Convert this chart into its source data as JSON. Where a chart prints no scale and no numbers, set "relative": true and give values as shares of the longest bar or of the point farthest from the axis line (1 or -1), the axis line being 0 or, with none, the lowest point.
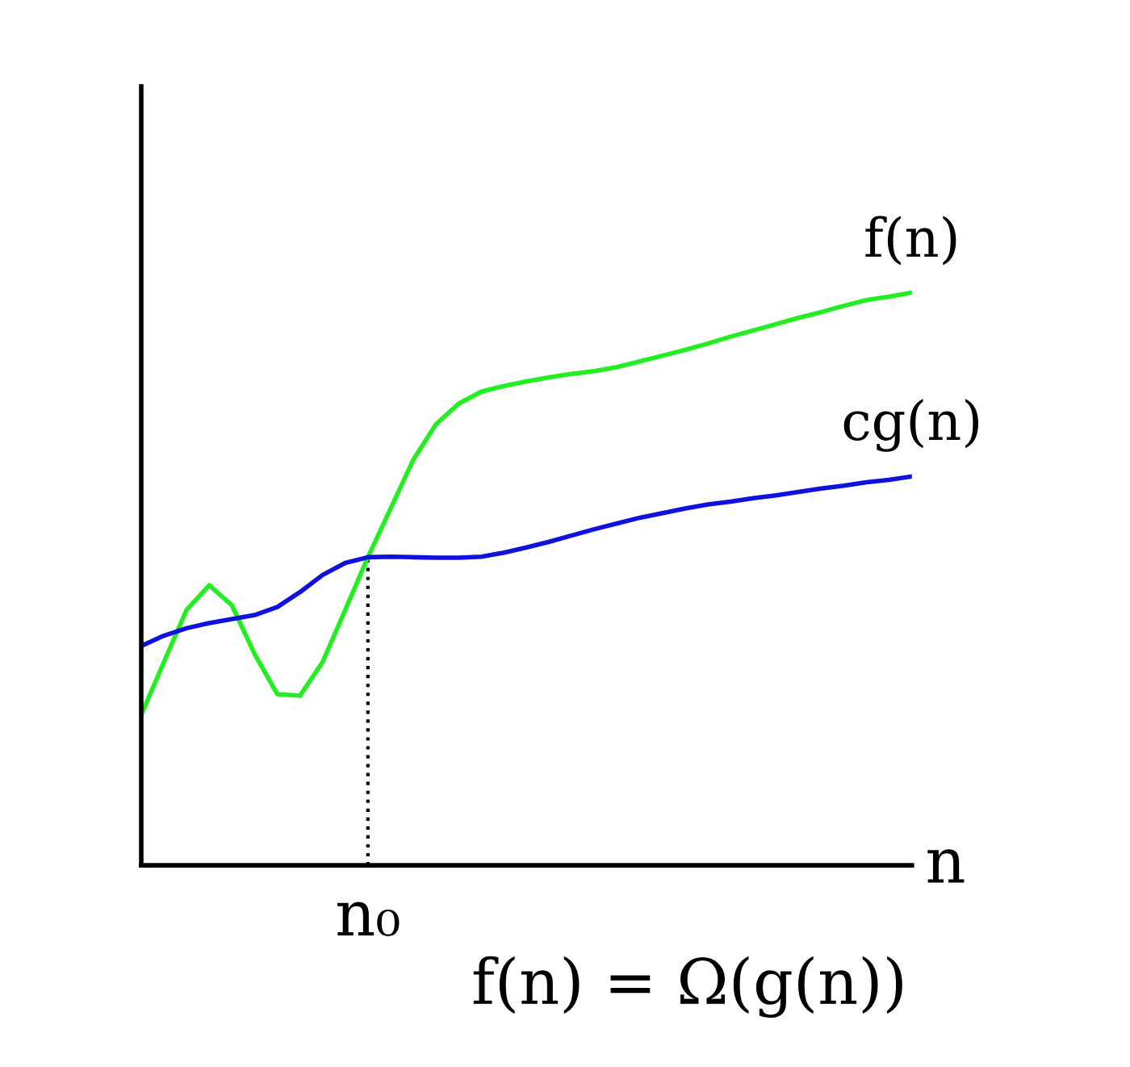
{
  "chart_data": {
    "type": "line",
    "relative": true,
    "xlabel": "n",
    "legend": false,
    "line_style": "solid",
    "marker": "none",
    "categories": [
      null,
      null,
      null,
      null,
      null,
      null,
      null,
      null,
      null,
      null,
      null,
      null,
      null,
      null,
      null,
      null,
      null,
      null,
      null,
      null,
      null,
      null,
      null,
      null,
      null,
      null,
      null,
      null,
      null,
      null,
      null,
      null,
      null,
      null,
      null
    ],
    "series": [
      {
        "name": "f(n)",
        "color": "#22ee22",
        "values": [
          0.263,
          0.355,
          0.446,
          0.489,
          0.454,
          0.369,
          0.299,
          0.296,
          0.355,
          0.446,
          0.538,
          0.623,
          0.708,
          0.77,
          0.806,
          0.827,
          0.837,
          0.845,
          0.852,
          0.858,
          0.863,
          0.87,
          0.88,
          0.89,
          0.9,
          0.911,
          0.923,
          0.934,
          0.945,
          0.956,
          0.966,
          0.977,
          0.987,
          0.993,
          1.0
        ]
      },
      {
        "name": "cg(n)",
        "color": "#1111dd",
        "values": [
          0.383,
          0.401,
          0.414,
          0.423,
          0.43,
          0.437,
          0.451,
          0.477,
          0.507,
          0.528,
          0.538,
          0.539,
          0.538,
          0.537,
          0.537,
          0.539,
          0.546,
          0.555,
          0.565,
          0.576,
          0.587,
          0.597,
          0.607,
          0.615,
          0.623,
          0.63,
          0.635,
          0.641,
          0.646,
          0.652,
          0.658,
          0.663,
          0.669,
          0.673,
          0.679
        ]
      }
    ],
    "annotations": [
      {
        "text": "n₀",
        "y": 0.538
      },
      "f(n) = Ω(g(n))"
    ]
  }
}
